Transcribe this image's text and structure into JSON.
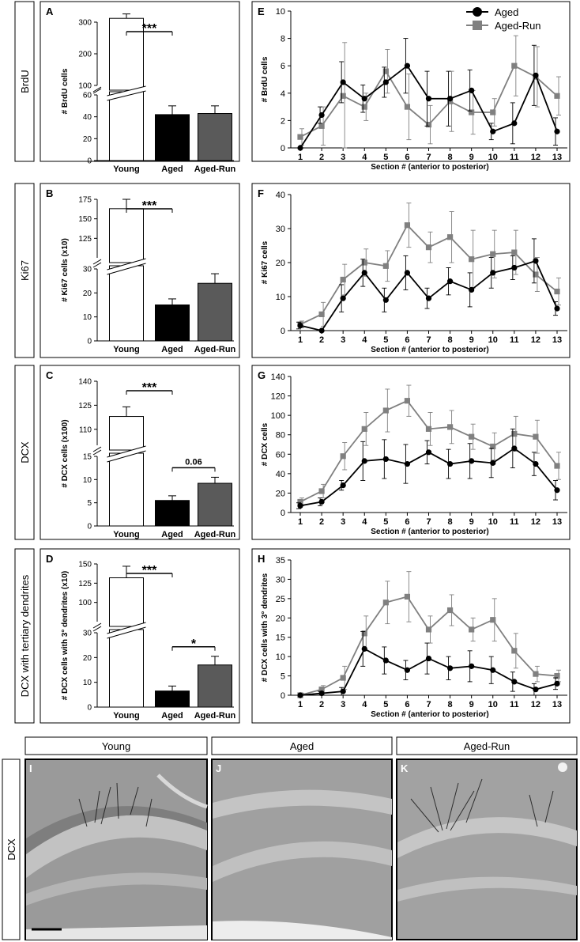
{
  "row_labels": [
    "BrdU",
    "Ki67",
    "DCX",
    "DCX with tertiary dendrites"
  ],
  "bottom_row_label": "DCX",
  "micro_headers": [
    "Young",
    "Aged",
    "Aged-Run"
  ],
  "micro_panel_letters": [
    "I",
    "J",
    "K"
  ],
  "chart_data": [
    {
      "panel": "A",
      "type": "bar",
      "ylabel": "# BrdU cells",
      "categories": [
        "Young",
        "Aged",
        "Aged-Run"
      ],
      "values": [
        312,
        42,
        43
      ],
      "errors": [
        14,
        8,
        7
      ],
      "colors": [
        "#ffffff",
        "#000000",
        "#5a5a5a"
      ],
      "axis_break": {
        "lower": [
          0,
          60
        ],
        "upper": [
          100,
          300
        ]
      },
      "yticks": [
        0,
        20,
        40,
        60,
        100,
        200,
        300
      ],
      "significance": [
        {
          "from": 0,
          "to": 1,
          "label": "***"
        }
      ]
    },
    {
      "panel": "B",
      "type": "bar",
      "ylabel": "# Ki67 cells (x10)",
      "categories": [
        "Young",
        "Aged",
        "Aged-Run"
      ],
      "values": [
        163,
        15,
        24
      ],
      "errors": [
        12,
        2.5,
        4
      ],
      "colors": [
        "#ffffff",
        "#000000",
        "#5a5a5a"
      ],
      "axis_break": {
        "lower": [
          0,
          30
        ],
        "upper": [
          100,
          175
        ]
      },
      "yticks": [
        0,
        10,
        20,
        30,
        125,
        150,
        175
      ],
      "significance": [
        {
          "from": 0,
          "to": 1,
          "label": "***"
        }
      ]
    },
    {
      "panel": "C",
      "type": "bar",
      "ylabel": "# DCX cells (x100)",
      "categories": [
        "Young",
        "Aged",
        "Aged-Run"
      ],
      "values": [
        118,
        5.5,
        9.2
      ],
      "errors": [
        6,
        1,
        1.3
      ],
      "colors": [
        "#ffffff",
        "#000000",
        "#5a5a5a"
      ],
      "axis_break": {
        "lower": [
          0,
          15
        ],
        "upper": [
          100,
          140
        ]
      },
      "yticks": [
        0,
        5,
        10,
        15,
        110,
        125,
        140
      ],
      "significance": [
        {
          "from": 0,
          "to": 1,
          "label": "***"
        },
        {
          "from": 1,
          "to": 2,
          "label": "0.06"
        }
      ]
    },
    {
      "panel": "D",
      "type": "bar",
      "ylabel": "# DCX cells with 3° dendrites (x10)",
      "categories": [
        "Young",
        "Aged",
        "Aged-Run"
      ],
      "values": [
        132,
        6.5,
        17
      ],
      "errors": [
        15,
        2,
        3.5
      ],
      "colors": [
        "#ffffff",
        "#000000",
        "#5a5a5a"
      ],
      "axis_break": {
        "lower": [
          0,
          30
        ],
        "upper": [
          75,
          150
        ]
      },
      "yticks": [
        0,
        10,
        20,
        30,
        100,
        125,
        150
      ],
      "significance": [
        {
          "from": 0,
          "to": 1,
          "label": "***"
        },
        {
          "from": 1,
          "to": 2,
          "label": "*"
        }
      ]
    },
    {
      "panel": "E",
      "type": "line",
      "ylabel": "# BrdU cells",
      "xlabel": "Section # (anterior to posterior)",
      "x": [
        1,
        2,
        3,
        4,
        5,
        6,
        7,
        8,
        9,
        10,
        11,
        12,
        13
      ],
      "ylim": [
        0,
        10
      ],
      "yticks": [
        0,
        2,
        4,
        6,
        8,
        10
      ],
      "series": [
        {
          "name": "Aged",
          "color": "#000000",
          "marker": "circle",
          "values": [
            0,
            2.4,
            4.8,
            3.6,
            4.8,
            6.0,
            3.6,
            3.6,
            4.2,
            1.2,
            1.8,
            5.3,
            1.2
          ],
          "errors": [
            0,
            0.6,
            1.5,
            1.0,
            1.1,
            2.0,
            2.0,
            2.0,
            1.5,
            0.6,
            1.5,
            2.2,
            1.0
          ]
        },
        {
          "name": "Aged-Run",
          "color": "#808080",
          "marker": "square",
          "values": [
            0.8,
            1.6,
            3.8,
            3.0,
            5.6,
            3.0,
            1.7,
            3.4,
            2.6,
            2.6,
            6.0,
            5.2,
            3.8
          ],
          "errors": [
            0.6,
            1.4,
            3.9,
            1.0,
            1.6,
            2.4,
            1.4,
            2.2,
            1.6,
            1.0,
            2.2,
            2.2,
            1.4
          ]
        }
      ],
      "legend": "top-right"
    },
    {
      "panel": "F",
      "type": "line",
      "ylabel": "# Ki67 cells",
      "xlabel": "Section # (anterior to posterior)",
      "x": [
        1,
        2,
        3,
        4,
        5,
        6,
        7,
        8,
        9,
        10,
        11,
        12,
        13
      ],
      "ylim": [
        0,
        40
      ],
      "yticks": [
        0,
        10,
        20,
        30,
        40
      ],
      "series": [
        {
          "name": "Aged",
          "color": "#000000",
          "marker": "circle",
          "values": [
            1.5,
            0,
            9.5,
            17,
            9,
            17,
            9.5,
            14.5,
            12,
            17,
            18.5,
            20.5,
            6.5
          ],
          "errors": [
            1,
            0,
            4,
            4,
            3.5,
            5,
            3,
            4,
            5,
            4.5,
            3.5,
            6.5,
            2
          ]
        },
        {
          "name": "Aged-Run",
          "color": "#808080",
          "marker": "square",
          "values": [
            1.8,
            4.8,
            15,
            20,
            19,
            31,
            24.5,
            27.5,
            21,
            22.5,
            23,
            16.5,
            11.5
          ],
          "errors": [
            1,
            3.5,
            4.5,
            4,
            4.5,
            6.5,
            4.5,
            7.5,
            8.5,
            7,
            6.5,
            5,
            4
          ]
        }
      ]
    },
    {
      "panel": "G",
      "type": "line",
      "ylabel": "# DCX cells",
      "xlabel": "Section # (anterior to posterior)",
      "x": [
        1,
        2,
        3,
        4,
        5,
        6,
        7,
        8,
        9,
        10,
        11,
        12,
        13
      ],
      "ylim": [
        0,
        140
      ],
      "yticks": [
        0,
        20,
        40,
        60,
        80,
        100,
        120,
        140
      ],
      "series": [
        {
          "name": "Aged",
          "color": "#000000",
          "marker": "circle",
          "values": [
            7,
            11,
            28,
            53,
            55,
            50,
            62,
            50,
            53,
            51,
            66,
            50,
            23
          ],
          "errors": [
            3,
            4,
            5,
            20,
            20,
            20,
            12,
            15,
            18,
            15,
            20,
            12,
            10
          ]
        },
        {
          "name": "Aged-Run",
          "color": "#808080",
          "marker": "square",
          "values": [
            11,
            22,
            58,
            86,
            105,
            115,
            86,
            88,
            78,
            68,
            81,
            78,
            48
          ],
          "errors": [
            4,
            7,
            14,
            17,
            22,
            16,
            17,
            17,
            13,
            14,
            18,
            17,
            14
          ]
        }
      ]
    },
    {
      "panel": "H",
      "type": "line",
      "ylabel": "# DCX cells with 3° dendrites",
      "xlabel": "Section # (anterior to posterior)",
      "x": [
        1,
        2,
        3,
        4,
        5,
        6,
        7,
        8,
        9,
        10,
        11,
        12,
        13
      ],
      "ylim": [
        0,
        35
      ],
      "yticks": [
        0,
        5,
        10,
        15,
        20,
        25,
        30,
        35
      ],
      "series": [
        {
          "name": "Aged",
          "color": "#000000",
          "marker": "circle",
          "values": [
            0,
            0.5,
            1,
            12,
            9,
            6.5,
            9.5,
            7,
            7.5,
            6.5,
            3.5,
            1.5,
            3
          ],
          "errors": [
            0,
            0.5,
            1,
            4.5,
            3.5,
            2.5,
            4,
            3,
            4,
            3.5,
            2.5,
            1.5,
            1.5
          ]
        },
        {
          "name": "Aged-Run",
          "color": "#808080",
          "marker": "square",
          "values": [
            0,
            1.5,
            4.5,
            16,
            24,
            25.5,
            17,
            22,
            17,
            19.5,
            11.5,
            5.5,
            5
          ],
          "errors": [
            0.5,
            1,
            3,
            4.5,
            5.5,
            6.5,
            3.5,
            4,
            3,
            5.5,
            4.5,
            2,
            1.5
          ]
        }
      ]
    }
  ]
}
